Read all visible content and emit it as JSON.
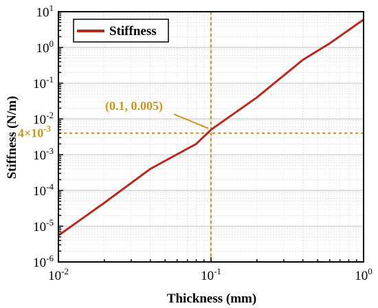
{
  "chart_data": {
    "type": "line",
    "xscale": "log",
    "yscale": "log",
    "xlim": [
      0.01,
      1
    ],
    "ylim": [
      1e-06,
      10
    ],
    "xlabel": "Thickness (mm)",
    "ylabel": "Stiffness (N/m)",
    "x_ticks": [
      {
        "value": 0.01,
        "base": "10",
        "exp": "-2"
      },
      {
        "value": 0.1,
        "base": "10",
        "exp": "-1"
      },
      {
        "value": 1,
        "base": "10",
        "exp": "0"
      }
    ],
    "y_ticks": [
      {
        "value": 1e-06,
        "base": "10",
        "exp": "-6"
      },
      {
        "value": 1e-05,
        "base": "10",
        "exp": "-5"
      },
      {
        "value": 0.0001,
        "base": "10",
        "exp": "-4"
      },
      {
        "value": 0.001,
        "base": "10",
        "exp": "-3"
      },
      {
        "value": 0.01,
        "base": "10",
        "exp": "-2"
      },
      {
        "value": 0.1,
        "base": "10",
        "exp": "-1"
      },
      {
        "value": 1,
        "base": "10",
        "exp": "0"
      },
      {
        "value": 10,
        "base": "10",
        "exp": "1"
      }
    ],
    "grid": true,
    "legend_position": "top-left",
    "series": [
      {
        "name": "Stiffness",
        "color": "#b52a1c",
        "x": [
          0.01,
          0.02,
          0.04,
          0.08,
          0.1,
          0.2,
          0.4,
          0.6,
          1.0
        ],
        "y": [
          5.5e-06,
          4.5e-05,
          0.0004,
          0.002,
          0.005,
          0.04,
          0.45,
          1.3,
          6.0
        ]
      }
    ],
    "reference_lines": {
      "color": "#c8961e",
      "vertical_x": 0.1,
      "horizontal_y": 0.004
    },
    "annotations": {
      "point_label": "(0.1, 0.005)",
      "point": [
        0.1,
        0.005
      ],
      "hline_label_base": "4×10",
      "hline_label_exp": "-3"
    }
  }
}
